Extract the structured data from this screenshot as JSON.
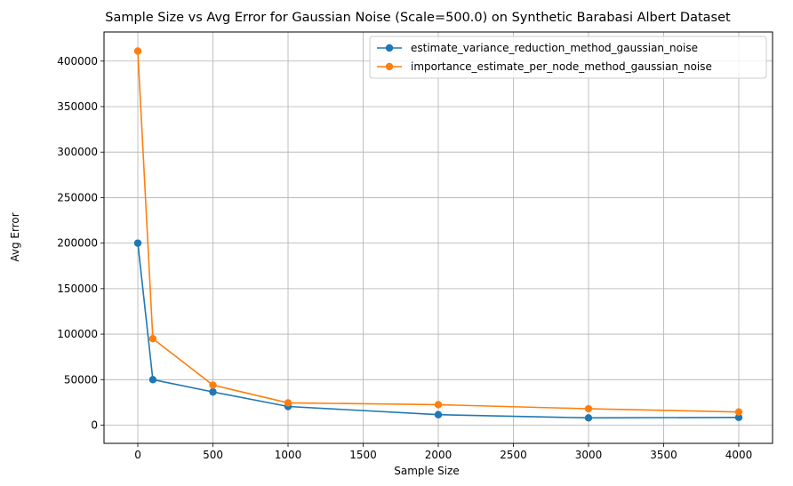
{
  "chart_data": {
    "type": "line",
    "title": "Sample Size vs Avg Error for Gaussian Noise (Scale=500.0) on Synthetic Barabasi Albert Dataset",
    "xlabel": "Sample Size",
    "ylabel": "Avg Error",
    "xlim": [
      -225,
      4225
    ],
    "ylim": [
      -20000,
      432000
    ],
    "xticks": [
      0,
      500,
      1000,
      1500,
      2000,
      2500,
      3000,
      3500,
      4000
    ],
    "yticks": [
      0,
      50000,
      100000,
      150000,
      200000,
      250000,
      300000,
      350000,
      400000
    ],
    "grid": true,
    "legend_position": "upper right",
    "x": [
      0,
      100,
      500,
      1000,
      2000,
      3000,
      4000
    ],
    "series": [
      {
        "name": "estimate_variance_reduction_method_gaussian_noise",
        "color": "#1f77b4",
        "values": [
          200000,
          50000,
          36500,
          20500,
          11500,
          8000,
          8500
        ]
      },
      {
        "name": "importance_estimate_per_node_method_gaussian_noise",
        "color": "#ff7f0e",
        "values": [
          411000,
          95000,
          44000,
          24500,
          22500,
          18000,
          14500
        ]
      }
    ]
  }
}
